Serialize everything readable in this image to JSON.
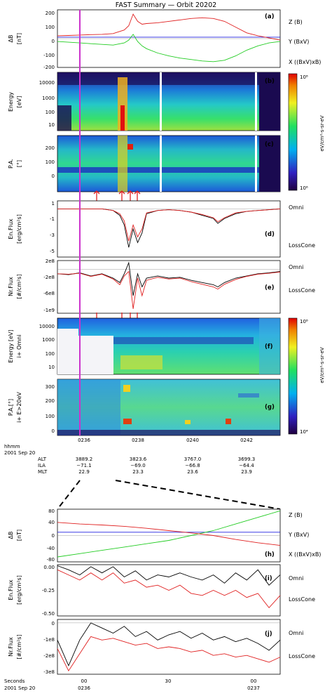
{
  "title": "FAST Summary — Orbit 20202",
  "colors": {
    "z": "#2020e0",
    "y": "#22cc22",
    "x": "#e02020",
    "omni": "#000000",
    "losscone": "#e02020",
    "marker": "#cc33cc"
  },
  "panels": {
    "a": {
      "tag": "(a)",
      "ylabel": "ΔB",
      "units": "[nT]",
      "ticks": [
        "200",
        "100",
        "0",
        "-100",
        "-200"
      ],
      "legend": [
        "Z (B)",
        "Y (BxV)",
        "X ((BxV)xB)"
      ]
    },
    "b": {
      "tag": "(b)",
      "ylabel": "Energy",
      "units": "[eV]",
      "ticks": [
        "10000",
        "1000",
        "100",
        "10"
      ]
    },
    "c": {
      "tag": "(c)",
      "ylabel": "P.A.",
      "units": "[°]",
      "ticks": [
        "200",
        "100",
        "0"
      ]
    },
    "bc_colorbar": {
      "max": "10⁸",
      "min": "10⁶",
      "units": "eV/cm²-s-sr-eV"
    },
    "d": {
      "tag": "(d)",
      "ylabel": "En.Flux",
      "units": "[erg/cm²s]",
      "ticks": [
        "1",
        "-1",
        "-3",
        "-5"
      ],
      "legend": [
        "Omni",
        "LossCone"
      ]
    },
    "e": {
      "tag": "(e)",
      "ylabel": "Nr.Flux",
      "units": "[#/cm²s]",
      "ticks": [
        "2e8",
        "-2e8",
        "-6e8",
        "-1e9"
      ],
      "legend": [
        "Omni",
        "LossCone"
      ]
    },
    "f": {
      "tag": "(f)",
      "ylabel": "Energy [eV]",
      "units": "i+ Omni",
      "ticks": [
        "10000",
        "1000",
        "100",
        "10"
      ]
    },
    "g": {
      "tag": "(g)",
      "ylabel": "P.A.[°]",
      "units": "i+ E>20eV",
      "ticks": [
        "300",
        "200",
        "100",
        "0"
      ]
    },
    "fg_colorbar": {
      "max": "10⁸",
      "min": "10⁴",
      "units": "eV/cm²-s-sr-eV"
    },
    "h": {
      "tag": "(h)",
      "ylabel": "ΔB",
      "units": "[nT]",
      "ticks": [
        "80",
        "40",
        "0",
        "-40",
        "-80"
      ],
      "legend": [
        "Z (B)",
        "Y (BxV)",
        "X ((BxV)xB)"
      ]
    },
    "i": {
      "tag": "(i)",
      "ylabel": "En.Flux",
      "units": "[erg/cm²s]",
      "ticks": [
        "0.00",
        "-0.25",
        "-0.50"
      ],
      "legend": [
        "Omni",
        "LossCone"
      ]
    },
    "j": {
      "tag": "(j)",
      "ylabel": "Nr.Flux",
      "units": "[#/cm²s]",
      "ticks": [
        "0",
        "-1e8",
        "-2e8",
        "-3e8"
      ],
      "legend": [
        "Omni",
        "LossCone"
      ]
    }
  },
  "time_axis_top": {
    "ticks": [
      "0236",
      "0238",
      "0240",
      "0242"
    ],
    "row_labels": [
      "hhmm",
      "2001 Sep 20",
      "ALT",
      "ILA",
      "MLT"
    ],
    "columns": [
      {
        "alt": "3889.2",
        "ila": "−71.1",
        "mlt": "22.9"
      },
      {
        "alt": "3823.6",
        "ila": "−69.0",
        "mlt": "23.3"
      },
      {
        "alt": "3767.0",
        "ila": "−66.8",
        "mlt": "23.6"
      },
      {
        "alt": "3699.3",
        "ila": "−64.4",
        "mlt": "23.9"
      }
    ]
  },
  "time_axis_bottom": {
    "row_labels": [
      "Seconds",
      "2001 Sep 20"
    ],
    "ticks": [
      {
        "sec": "00",
        "hhmm": "0236"
      },
      {
        "sec": "30",
        "hhmm": ""
      },
      {
        "sec": "00",
        "hhmm": "0237"
      }
    ]
  },
  "chart_data": [
    {
      "type": "line",
      "panel": "a",
      "ylim": [
        -200,
        200
      ],
      "xlim": [
        0,
        1
      ],
      "x": [
        0,
        0.05,
        0.1,
        0.15,
        0.2,
        0.25,
        0.3,
        0.32,
        0.34,
        0.36,
        0.38,
        0.4,
        0.45,
        0.5,
        0.55,
        0.6,
        0.65,
        0.7,
        0.75,
        0.8,
        0.85,
        0.9,
        0.95,
        1.0
      ],
      "series": [
        {
          "name": "Z (B)",
          "color": "z",
          "values": [
            10,
            10,
            10,
            10,
            10,
            10,
            10,
            10,
            10,
            10,
            10,
            10,
            10,
            10,
            10,
            10,
            10,
            10,
            10,
            10,
            10,
            10,
            10,
            10
          ]
        },
        {
          "name": "Y (BxV)",
          "color": "y",
          "values": [
            -20,
            -25,
            -30,
            -35,
            -40,
            -45,
            -30,
            -10,
            30,
            -20,
            -50,
            -70,
            -100,
            -120,
            -135,
            -145,
            -155,
            -160,
            -150,
            -120,
            -80,
            -50,
            -30,
            -20
          ]
        },
        {
          "name": "X ((BxV)xB)",
          "color": "x",
          "values": [
            20,
            22,
            25,
            28,
            30,
            35,
            60,
            90,
            170,
            120,
            100,
            105,
            110,
            120,
            130,
            140,
            145,
            140,
            120,
            80,
            40,
            20,
            5,
            -10
          ]
        }
      ]
    },
    {
      "type": "line",
      "panel": "d",
      "ylim": [
        -6,
        1
      ],
      "xlim": [
        0,
        1
      ],
      "x": [
        0,
        0.05,
        0.1,
        0.15,
        0.2,
        0.25,
        0.28,
        0.3,
        0.32,
        0.34,
        0.36,
        0.38,
        0.4,
        0.45,
        0.5,
        0.55,
        0.6,
        0.65,
        0.7,
        0.72,
        0.75,
        0.8,
        0.85,
        0.9,
        0.95,
        1.0
      ],
      "series": [
        {
          "name": "Omni",
          "color": "omni",
          "values": [
            0,
            0,
            0,
            0,
            0,
            -0.2,
            -0.8,
            -2,
            -4.8,
            -2.5,
            -4.2,
            -3,
            -0.6,
            -0.2,
            -0.1,
            -0.2,
            -0.4,
            -0.8,
            -1.2,
            -1.8,
            -1.2,
            -0.6,
            -0.3,
            -0.2,
            -0.1,
            0
          ]
        },
        {
          "name": "LossCone",
          "color": "losscone",
          "values": [
            0,
            0,
            0,
            0,
            0,
            -0.2,
            -0.6,
            -1.5,
            -4,
            -2,
            -3.5,
            -2.5,
            -0.5,
            -0.2,
            -0.1,
            -0.2,
            -0.4,
            -0.7,
            -1.1,
            -1.6,
            -1.1,
            -0.5,
            -0.3,
            -0.2,
            -0.1,
            0
          ]
        }
      ]
    },
    {
      "type": "line",
      "panel": "e",
      "ylim": [
        -1000000000.0,
        200000000.0
      ],
      "xlim": [
        0,
        1
      ],
      "x": [
        0,
        0.05,
        0.1,
        0.15,
        0.2,
        0.25,
        0.28,
        0.3,
        0.32,
        0.34,
        0.36,
        0.38,
        0.4,
        0.45,
        0.5,
        0.55,
        0.6,
        0.65,
        0.7,
        0.72,
        0.75,
        0.8,
        0.85,
        0.9,
        0.95,
        1.0
      ],
      "series": [
        {
          "name": "Omni",
          "color": "omni",
          "values": [
            -100000000.0,
            -120000000.0,
            -80000000.0,
            -150000000.0,
            -100000000.0,
            -200000000.0,
            -300000000.0,
            -100000000.0,
            150000000.0,
            -600000000.0,
            -100000000.0,
            -400000000.0,
            -200000000.0,
            -150000000.0,
            -200000000.0,
            -180000000.0,
            -250000000.0,
            -300000000.0,
            -350000000.0,
            -400000000.0,
            -300000000.0,
            -200000000.0,
            -150000000.0,
            -100000000.0,
            -80000000.0,
            -50000000.0
          ]
        },
        {
          "name": "LossCone",
          "color": "losscone",
          "values": [
            -100000000.0,
            -110000000.0,
            -90000000.0,
            -160000000.0,
            -110000000.0,
            -220000000.0,
            -350000000.0,
            -150000000.0,
            -50000000.0,
            -900000000.0,
            -200000000.0,
            -600000000.0,
            -250000000.0,
            -180000000.0,
            -220000000.0,
            -200000000.0,
            -280000000.0,
            -340000000.0,
            -400000000.0,
            -450000000.0,
            -340000000.0,
            -230000000.0,
            -160000000.0,
            -110000000.0,
            -90000000.0,
            -60000000.0
          ]
        }
      ]
    },
    {
      "type": "line",
      "panel": "h",
      "ylim": [
        -80,
        80
      ],
      "xlim": [
        0,
        1
      ],
      "x": [
        0,
        0.1,
        0.2,
        0.3,
        0.4,
        0.5,
        0.6,
        0.7,
        0.8,
        0.9,
        1.0
      ],
      "series": [
        {
          "name": "Z (B)",
          "color": "z",
          "values": [
            10,
            10,
            10,
            10,
            10,
            10,
            10,
            10,
            10,
            10,
            10
          ]
        },
        {
          "name": "Y (BxV)",
          "color": "y",
          "values": [
            -65,
            -55,
            -45,
            -35,
            -25,
            -15,
            0,
            15,
            35,
            55,
            75
          ]
        },
        {
          "name": "X ((BxV)xB)",
          "color": "x",
          "values": [
            40,
            35,
            32,
            28,
            22,
            15,
            8,
            0,
            -12,
            -22,
            -30
          ]
        }
      ]
    },
    {
      "type": "line",
      "panel": "i",
      "ylim": [
        -0.5,
        0
      ],
      "xlim": [
        0,
        1
      ],
      "x": [
        0,
        0.05,
        0.1,
        0.15,
        0.2,
        0.25,
        0.3,
        0.35,
        0.4,
        0.45,
        0.5,
        0.55,
        0.6,
        0.65,
        0.7,
        0.75,
        0.8,
        0.85,
        0.9,
        0.95,
        1.0
      ],
      "series": [
        {
          "name": "Omni",
          "color": "omni",
          "values": [
            -0.01,
            -0.05,
            -0.1,
            -0.02,
            -0.08,
            -0.02,
            -0.12,
            -0.06,
            -0.15,
            -0.1,
            -0.12,
            -0.08,
            -0.12,
            -0.15,
            -0.1,
            -0.18,
            -0.08,
            -0.15,
            -0.05,
            -0.2,
            -0.1
          ]
        },
        {
          "name": "LossCone",
          "color": "losscone",
          "values": [
            -0.05,
            -0.1,
            -0.15,
            -0.08,
            -0.15,
            -0.08,
            -0.18,
            -0.15,
            -0.22,
            -0.2,
            -0.25,
            -0.2,
            -0.28,
            -0.3,
            -0.25,
            -0.3,
            -0.25,
            -0.32,
            -0.28,
            -0.42,
            -0.3
          ]
        }
      ]
    },
    {
      "type": "line",
      "panel": "j",
      "ylim": [
        -300000000.0,
        20000000.0
      ],
      "xlim": [
        0,
        1
      ],
      "x": [
        0,
        0.05,
        0.1,
        0.15,
        0.2,
        0.25,
        0.3,
        0.35,
        0.4,
        0.45,
        0.5,
        0.55,
        0.6,
        0.65,
        0.7,
        0.75,
        0.8,
        0.85,
        0.9,
        0.95,
        1.0
      ],
      "series": [
        {
          "name": "Omni",
          "color": "omni",
          "values": [
            -100000000.0,
            -250000000.0,
            -100000000.0,
            0,
            -30000000.0,
            -60000000.0,
            -20000000.0,
            -80000000.0,
            -50000000.0,
            -100000000.0,
            -70000000.0,
            -50000000.0,
            -90000000.0,
            -60000000.0,
            -100000000.0,
            -80000000.0,
            -110000000.0,
            -90000000.0,
            -120000000.0,
            -160000000.0,
            -100000000.0
          ]
        },
        {
          "name": "LossCone",
          "color": "losscone",
          "values": [
            -150000000.0,
            -280000000.0,
            -180000000.0,
            -80000000.0,
            -100000000.0,
            -90000000.0,
            -110000000.0,
            -130000000.0,
            -120000000.0,
            -150000000.0,
            -140000000.0,
            -150000000.0,
            -170000000.0,
            -160000000.0,
            -190000000.0,
            -180000000.0,
            -200000000.0,
            -190000000.0,
            -210000000.0,
            -230000000.0,
            -200000000.0
          ]
        }
      ]
    },
    {
      "type": "heatmap",
      "panel": "b"
    },
    {
      "type": "heatmap",
      "panel": "c"
    },
    {
      "type": "heatmap",
      "panel": "f"
    },
    {
      "type": "heatmap",
      "panel": "g"
    }
  ]
}
